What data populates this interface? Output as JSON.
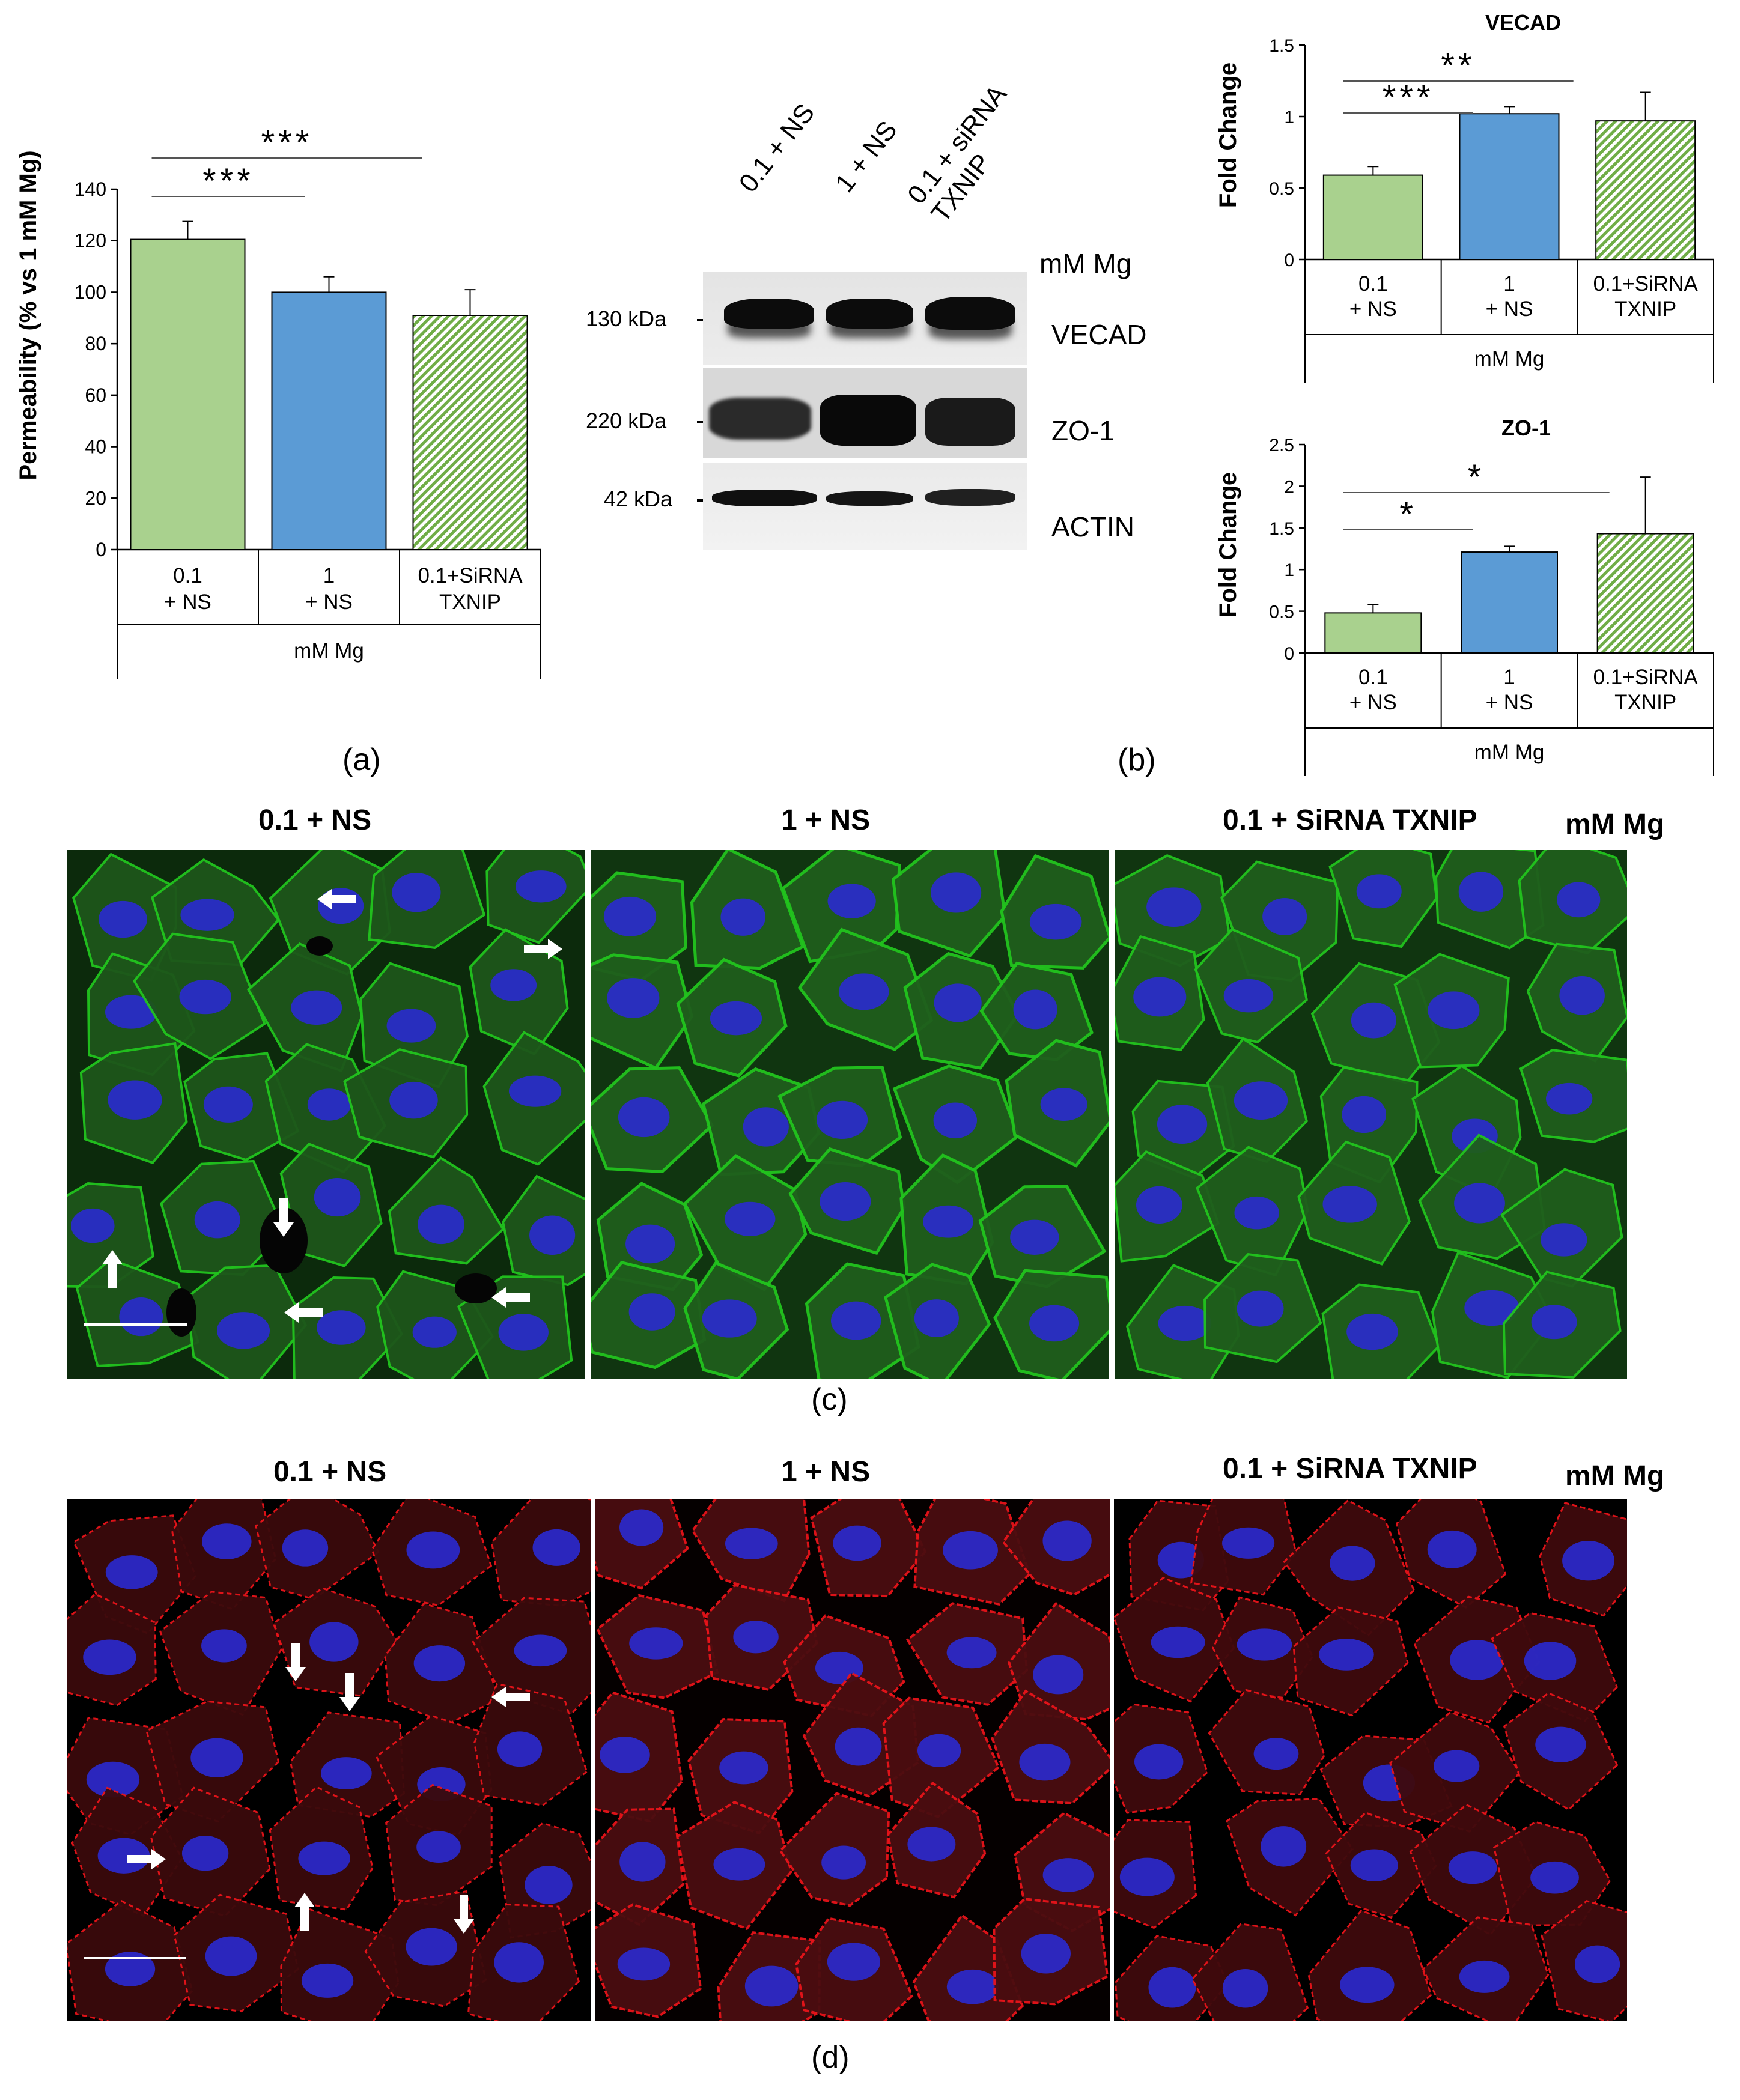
{
  "panel_labels": {
    "a": "(a)",
    "b": "(b)",
    "c": "(c)",
    "d": "(d)"
  },
  "chart_data": [
    {
      "id": "permeability",
      "type": "bar",
      "categories": [
        "0.1\n+ NS",
        "1\n+ NS",
        "0.1+SiRNA\nTXNIP"
      ],
      "group_label": "mM Mg",
      "values": [
        120.5,
        100,
        91
      ],
      "errors": [
        7,
        6,
        10
      ],
      "colors": [
        "#a9d18e",
        "#5b9bd5",
        "#70ad47"
      ],
      "hatched": [
        false,
        false,
        true
      ],
      "ylabel": "Permeability (% vs 1 mM Mg)",
      "ylim": [
        0,
        140
      ],
      "yticks": [
        0,
        20,
        40,
        60,
        80,
        100,
        120,
        140
      ],
      "significance": [
        {
          "from": 0,
          "to": 1,
          "label": "***"
        },
        {
          "from": 0,
          "to": 2,
          "label": "***"
        }
      ]
    },
    {
      "id": "vecad",
      "type": "bar",
      "title": "VECAD",
      "categories": [
        "0.1\n+ NS",
        "1\n+ NS",
        "0.1+SiRNA\nTXNIP"
      ],
      "group_label": "mM Mg",
      "values": [
        0.59,
        1.02,
        0.97
      ],
      "errors": [
        0.06,
        0.05,
        0.2
      ],
      "colors": [
        "#a9d18e",
        "#5b9bd5",
        "#70ad47"
      ],
      "hatched": [
        false,
        false,
        true
      ],
      "ylabel": "Fold Change",
      "ylim": [
        0,
        1.5
      ],
      "yticks": [
        "0",
        "0.5",
        "1",
        "1.5"
      ],
      "significance": [
        {
          "from": 0,
          "to": 1,
          "label": "***"
        },
        {
          "from": 0,
          "to": 2,
          "label": "**"
        }
      ]
    },
    {
      "id": "zo1",
      "type": "bar",
      "title": "ZO-1",
      "categories": [
        "0.1\n+ NS",
        "1\n+ NS",
        "0.1+SiRNA\nTXNIP"
      ],
      "group_label": "mM Mg",
      "values": [
        0.48,
        1.21,
        1.43
      ],
      "errors": [
        0.1,
        0.07,
        0.68
      ],
      "colors": [
        "#a9d18e",
        "#5b9bd5",
        "#70ad47"
      ],
      "hatched": [
        false,
        false,
        true
      ],
      "ylabel": "Fold Change",
      "ylim": [
        0,
        2.5
      ],
      "yticks": [
        "0",
        "0.5",
        "1",
        "1.5",
        "2",
        "2.5"
      ],
      "significance": [
        {
          "from": 0,
          "to": 1,
          "label": "*"
        },
        {
          "from": 0,
          "to": 2,
          "label": "*"
        }
      ]
    }
  ],
  "western_blot": {
    "lanes": [
      "0.1 + NS",
      "1 + NS",
      "0.1 + siRNA\nTXNIP"
    ],
    "unit_label": "mM Mg",
    "bands": [
      {
        "protein": "VECAD",
        "size": "130 kDa"
      },
      {
        "protein": "ZO-1",
        "size": "220 kDa"
      },
      {
        "protein": "ACTIN",
        "size": "42 kDa"
      }
    ]
  },
  "microscopy": {
    "unit_label": "mM Mg",
    "conditions": [
      "0.1 + NS",
      "1 + NS",
      "0.1 + SiRNA TXNIP"
    ],
    "panel_c_stain_color": "#22c41e",
    "panel_d_stain_color": "#e8141a",
    "nucleus_color": "#2a2ad0"
  }
}
